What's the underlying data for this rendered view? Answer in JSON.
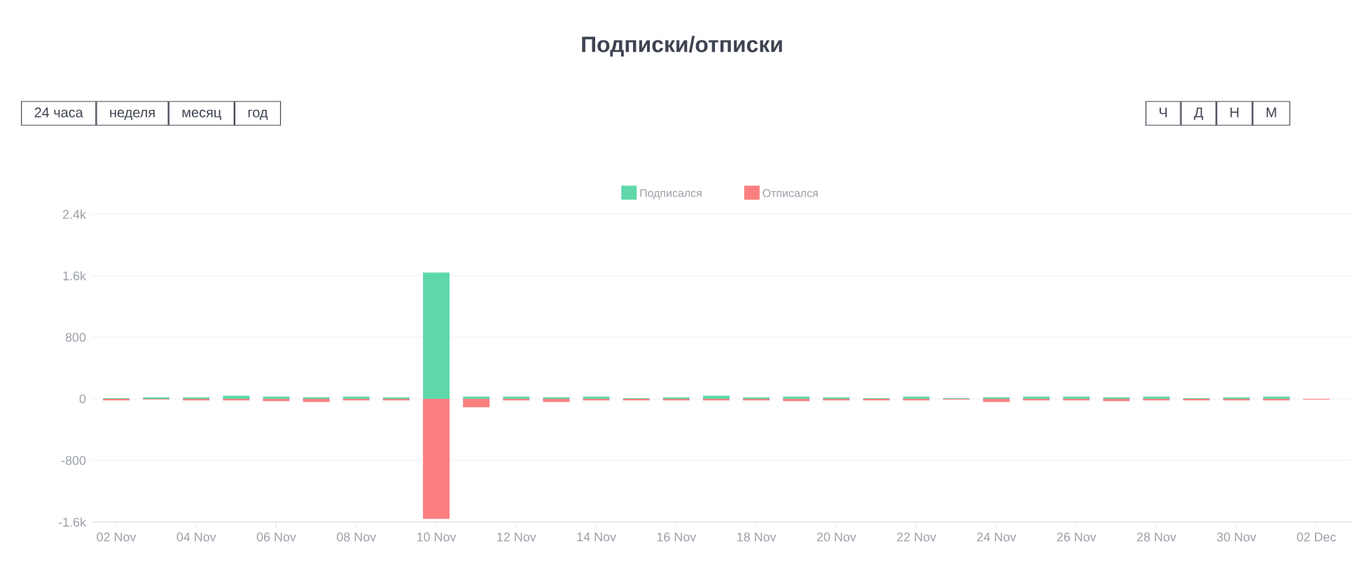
{
  "chart_data": {
    "type": "bar",
    "title": "Подписки/отписки",
    "annotations": [
      "24 часа",
      "неделя",
      "месяц",
      "год",
      "Ч",
      "Д",
      "Н",
      "М"
    ],
    "categories": [
      "02 Nov",
      null,
      "04 Nov",
      null,
      "06 Nov",
      null,
      "08 Nov",
      null,
      "10 Nov",
      null,
      "12 Nov",
      null,
      "14 Nov",
      null,
      "16 Nov",
      null,
      "18 Nov",
      null,
      "20 Nov",
      null,
      "22 Nov",
      null,
      "24 Nov",
      null,
      "26 Nov",
      null,
      "28 Nov",
      null,
      "30 Nov",
      null,
      "02 Dec"
    ],
    "series": [
      {
        "name": "Подписался",
        "color": "#5ed8a9",
        "values": [
          10,
          20,
          20,
          40,
          30,
          20,
          30,
          20,
          1640,
          30,
          30,
          20,
          30,
          10,
          20,
          40,
          20,
          30,
          20,
          10,
          30,
          10,
          20,
          30,
          30,
          20,
          30,
          10,
          20,
          30,
          null
        ]
      },
      {
        "name": "Отписался",
        "color": "#fb7f7f",
        "values": [
          -20,
          -10,
          -20,
          -20,
          -30,
          -40,
          -20,
          -20,
          -1560,
          -110,
          -20,
          -40,
          -20,
          -20,
          -20,
          -20,
          -20,
          -30,
          -20,
          -20,
          -20,
          -10,
          -40,
          -20,
          -20,
          -30,
          -20,
          -20,
          -20,
          -20,
          -10
        ]
      }
    ],
    "stacked": true,
    "ylim": [
      -1600,
      2400
    ],
    "yticks": [
      {
        "value": -1600,
        "label": "-1.6k"
      },
      -800,
      0,
      800,
      {
        "value": 1600,
        "label": "1.6k"
      },
      {
        "value": 2400,
        "label": "2.4k"
      }
    ],
    "grid": "y",
    "legend": "top"
  }
}
